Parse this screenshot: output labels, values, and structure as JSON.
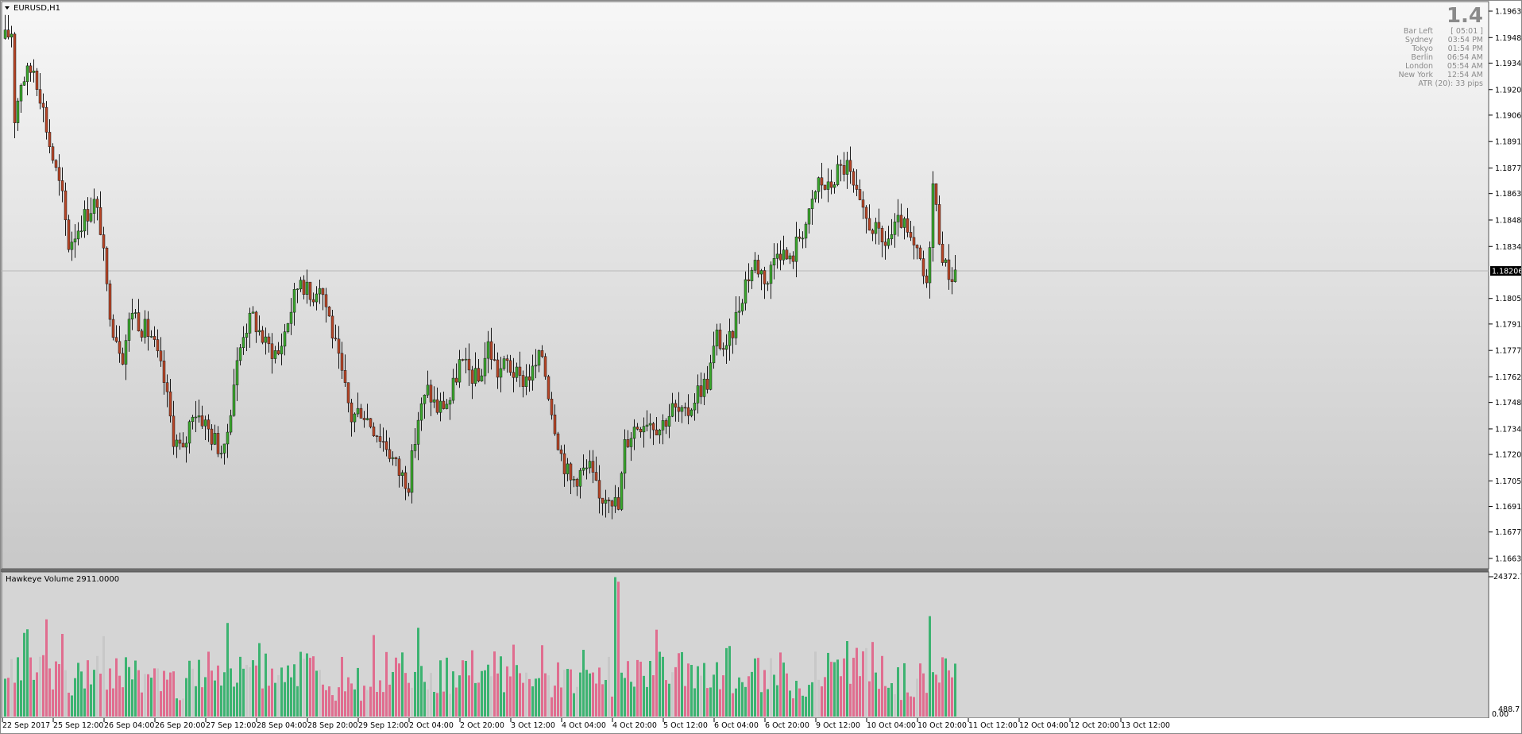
{
  "window": {
    "symbol_label": "EURUSD,H1"
  },
  "info_panel": {
    "big_value": "1.4",
    "rows": [
      {
        "label": "Bar Left",
        "value": "[ 05:01 ]"
      },
      {
        "label": "Sydney",
        "value": "03:54 PM"
      },
      {
        "label": "Tokyo",
        "value": "01:54 PM"
      },
      {
        "label": "Berlin",
        "value": "06:54 AM"
      },
      {
        "label": "London",
        "value": "05:54 AM"
      },
      {
        "label": "New York",
        "value": "12:54 AM"
      }
    ],
    "atr_text": "ATR (20): 33 pips"
  },
  "price_scale": {
    "ticks": [
      "1.19630",
      "1.19485",
      "1.19345",
      "1.19200",
      "1.19060",
      "1.18915",
      "1.18770",
      "1.18630",
      "1.18485",
      "1.18340",
      "1.18055",
      "1.17915",
      "1.17770",
      "1.17625",
      "1.17485",
      "1.17340",
      "1.17200",
      "1.17055",
      "1.16915",
      "1.16775",
      "1.16630"
    ],
    "current_price_label": "1.18206",
    "range": [
      1.1663,
      1.1963
    ]
  },
  "volume_panel": {
    "title": "Hawkeye Volume 2911.0000",
    "scale_top": "24372.7",
    "scale_bottom": "0.00",
    "scale_bottom_overlap": "488.7"
  },
  "time_axis": {
    "labels": [
      "22 Sep 2017",
      "25 Sep 12:00",
      "26 Sep 04:00",
      "26 Sep 20:00",
      "27 Sep 12:00",
      "28 Sep 04:00",
      "28 Sep 20:00",
      "29 Sep 12:00",
      "2 Oct 04:00",
      "2 Oct 20:00",
      "3 Oct 12:00",
      "4 Oct 04:00",
      "4 Oct 20:00",
      "5 Oct 12:00",
      "6 Oct 04:00",
      "6 Oct 20:00",
      "9 Oct 12:00",
      "10 Oct 04:00",
      "10 Oct 20:00",
      "11 Oct 12:00",
      "12 Oct 04:00",
      "12 Oct 20:00",
      "13 Oct 12:00"
    ]
  },
  "chart_data": {
    "type": "candlestick",
    "symbol": "EURUSD",
    "timeframe": "H1",
    "bars": 296,
    "ylim": [
      1.1663,
      1.1963
    ],
    "current_price": 1.18206,
    "anchors": [
      [
        0,
        1.1948
      ],
      [
        2,
        1.1952
      ],
      [
        3,
        1.1905
      ],
      [
        5,
        1.1925
      ],
      [
        9,
        1.1932
      ],
      [
        11,
        1.1918
      ],
      [
        14,
        1.189
      ],
      [
        18,
        1.186
      ],
      [
        20,
        1.1835
      ],
      [
        24,
        1.1848
      ],
      [
        28,
        1.1858
      ],
      [
        30,
        1.1845
      ],
      [
        32,
        1.181
      ],
      [
        34,
        1.179
      ],
      [
        37,
        1.1775
      ],
      [
        40,
        1.18
      ],
      [
        43,
        1.179
      ],
      [
        46,
        1.1785
      ],
      [
        50,
        1.176
      ],
      [
        53,
        1.173
      ],
      [
        56,
        1.172
      ],
      [
        59,
        1.1745
      ],
      [
        62,
        1.174
      ],
      [
        65,
        1.173
      ],
      [
        69,
        1.172
      ],
      [
        72,
        1.176
      ],
      [
        75,
        1.1788
      ],
      [
        78,
        1.1795
      ],
      [
        82,
        1.178
      ],
      [
        86,
        1.1775
      ],
      [
        90,
        1.18
      ],
      [
        93,
        1.1818
      ],
      [
        96,
        1.1805
      ],
      [
        99,
        1.1815
      ],
      [
        102,
        1.1795
      ],
      [
        105,
        1.177
      ],
      [
        109,
        1.174
      ],
      [
        112,
        1.1745
      ],
      [
        116,
        1.1735
      ],
      [
        120,
        1.1725
      ],
      [
        124,
        1.171
      ],
      [
        127,
        1.1705
      ],
      [
        130,
        1.174
      ],
      [
        133,
        1.1755
      ],
      [
        136,
        1.1745
      ],
      [
        140,
        1.175
      ],
      [
        143,
        1.177
      ],
      [
        146,
        1.1765
      ],
      [
        149,
        1.176
      ],
      [
        152,
        1.178
      ],
      [
        155,
        1.1765
      ],
      [
        158,
        1.177
      ],
      [
        162,
        1.176
      ],
      [
        166,
        1.1765
      ],
      [
        169,
        1.1775
      ],
      [
        172,
        1.1745
      ],
      [
        175,
        1.172
      ],
      [
        178,
        1.1705
      ],
      [
        181,
        1.171
      ],
      [
        184,
        1.1712
      ],
      [
        187,
        1.1695
      ],
      [
        190,
        1.17
      ],
      [
        193,
        1.169
      ],
      [
        195,
        1.1725
      ],
      [
        198,
        1.1735
      ],
      [
        202,
        1.174
      ],
      [
        206,
        1.1735
      ],
      [
        210,
        1.1745
      ],
      [
        214,
        1.174
      ],
      [
        218,
        1.1755
      ],
      [
        221,
        1.176
      ],
      [
        224,
        1.1785
      ],
      [
        227,
        1.1775
      ],
      [
        230,
        1.1795
      ],
      [
        233,
        1.1815
      ],
      [
        236,
        1.1825
      ],
      [
        240,
        1.1815
      ],
      [
        243,
        1.1835
      ],
      [
        247,
        1.1825
      ],
      [
        250,
        1.184
      ],
      [
        253,
        1.185
      ],
      [
        256,
        1.187
      ],
      [
        259,
        1.1865
      ],
      [
        262,
        1.1875
      ],
      [
        265,
        1.1878
      ],
      [
        267,
        1.1865
      ],
      [
        270,
        1.185
      ],
      [
        273,
        1.1845
      ],
      [
        276,
        1.1835
      ],
      [
        279,
        1.184
      ],
      [
        282,
        1.1848
      ],
      [
        285,
        1.1835
      ],
      [
        288,
        1.1825
      ],
      [
        290,
        1.181
      ],
      [
        292,
        1.1868
      ],
      [
        294,
        1.184
      ],
      [
        296,
        1.1822
      ],
      [
        298,
        1.1818
      ],
      [
        299,
        1.1821
      ]
    ],
    "volume": {
      "ylim": [
        0,
        24372.7
      ],
      "colors": {
        "up": "#3cb371",
        "down": "#e06d8f",
        "neutral": "#c8c8c8"
      },
      "spikes": [
        {
          "bar": 192,
          "value": 24300
        },
        {
          "bar": 193,
          "value": 23500
        },
        {
          "bar": 291,
          "value": 17500
        },
        {
          "bar": 18,
          "value": 14400
        },
        {
          "bar": 116,
          "value": 14200
        },
        {
          "bar": 31,
          "value": 14000
        }
      ]
    }
  },
  "colors": {
    "candle_up": "#3aa82c",
    "candle_down": "#b84526",
    "candle_outline": "#1a1a1a",
    "price_line": "#b4b4b4",
    "price_label_bg": "#000000",
    "gradient_top": "#f6f6f6",
    "gradient_bottom": "#c9c9c9",
    "volume_bg": "#d4d4d4"
  }
}
